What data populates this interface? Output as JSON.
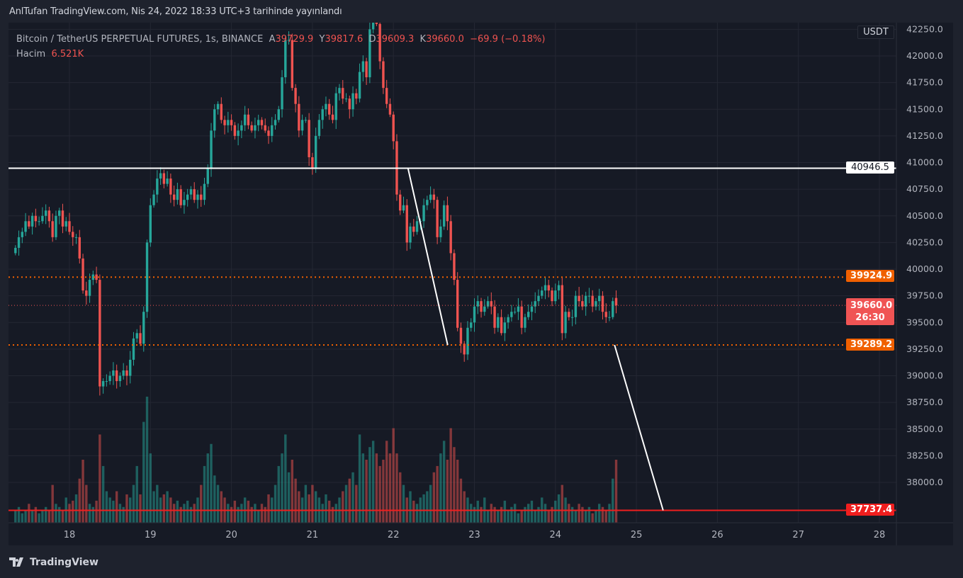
{
  "header": {
    "published": "AnlTufan TradingView.com, Nis 24, 2022 18:33 UTC+3 tarihinde yayınlandı"
  },
  "legend": {
    "symbol": "Bitcoin / TetherUS PERPETUAL FUTURES, 1s, BINANCE",
    "open_label": "A",
    "open": "39729.9",
    "high_label": "Y",
    "high": "39817.6",
    "low_label": "D",
    "low": "39609.3",
    "close_label": "K",
    "close": "39660.0",
    "change": "−69.9 (−0.18%)",
    "volume_label": "Hacim",
    "volume": "6.521K"
  },
  "price_axis": {
    "currency": "USDT"
  },
  "labels": {
    "resistance": "40946.5",
    "upper_band": "39924.9",
    "last_price": "39660.0",
    "countdown": "26:30",
    "lower_band": "39289.2",
    "target": "37737.4"
  },
  "brand": {
    "name": "TradingView"
  },
  "colors": {
    "up": "#26a69a",
    "down": "#ef5350",
    "orange": "#f06000",
    "red_line": "#f01e1e",
    "last": "#f05454",
    "bg": "#161a25",
    "grid": "#242733"
  },
  "chart_data": {
    "type": "candlestick",
    "interval": "1h",
    "last_candle_day": 24.75,
    "ylim": [
      37600,
      42312
    ],
    "yticks": [
      38000,
      38250,
      38500,
      38750,
      39000,
      39250,
      39500,
      39750,
      40000,
      40250,
      40500,
      40750,
      41000,
      41250,
      41500,
      41750,
      42000,
      42250
    ],
    "xticks": [
      "18",
      "19",
      "20",
      "21",
      "22",
      "23",
      "24",
      "25",
      "26",
      "27",
      "28"
    ],
    "xtick_days": [
      18,
      19,
      20,
      21,
      22,
      23,
      24,
      25,
      26,
      27,
      28
    ],
    "closes": [
      40200,
      40300,
      40350,
      40450,
      40400,
      40500,
      40450,
      40450,
      40500,
      40550,
      40450,
      40300,
      40500,
      40550,
      40400,
      40450,
      40350,
      40300,
      40300,
      40100,
      39800,
      39750,
      39900,
      39950,
      39900,
      38900,
      38950,
      38950,
      39000,
      39050,
      38950,
      39000,
      39050,
      39000,
      39150,
      39350,
      39400,
      39300,
      39600,
      40250,
      40600,
      40700,
      40850,
      40900,
      40800,
      40850,
      40700,
      40650,
      40750,
      40600,
      40650,
      40700,
      40750,
      40650,
      40700,
      40650,
      40800,
      40950,
      41300,
      41500,
      41550,
      41400,
      41350,
      41400,
      41350,
      41250,
      41300,
      41350,
      41450,
      41350,
      41300,
      41350,
      41400,
      41350,
      41300,
      41250,
      41350,
      41400,
      41500,
      41800,
      42150,
      42150,
      41700,
      41550,
      41300,
      41400,
      41400,
      41050,
      40950,
      41250,
      41400,
      41500,
      41550,
      41450,
      41400,
      41650,
      41700,
      41600,
      41600,
      41500,
      41650,
      41600,
      41850,
      41950,
      41800,
      42250,
      42400,
      42300,
      41950,
      41700,
      41550,
      41450,
      41200,
      40700,
      40550,
      40600,
      40250,
      40400,
      40350,
      40450,
      40450,
      40600,
      40650,
      40700,
      40650,
      40300,
      40400,
      40600,
      40450,
      40150,
      39900,
      39450,
      39300,
      39200,
      39450,
      39500,
      39650,
      39700,
      39600,
      39650,
      39700,
      39650,
      39450,
      39550,
      39400,
      39500,
      39550,
      39600,
      39600,
      39650,
      39450,
      39550,
      39600,
      39650,
      39700,
      39750,
      39800,
      39850,
      39800,
      39700,
      39800,
      39850,
      39400,
      39600,
      39550,
      39550,
      39750,
      39700,
      39650,
      39750,
      39750,
      39650,
      39700,
      39750,
      39600,
      39550,
      39550,
      39700,
      39660
    ],
    "last_open": 39729.9,
    "volumes": [
      4,
      5,
      3,
      4,
      6,
      4,
      5,
      3,
      4,
      5,
      4,
      12,
      6,
      5,
      4,
      8,
      6,
      7,
      9,
      14,
      20,
      12,
      6,
      5,
      7,
      28,
      18,
      10,
      8,
      7,
      10,
      6,
      5,
      9,
      8,
      12,
      18,
      9,
      32,
      40,
      22,
      10,
      12,
      8,
      9,
      10,
      8,
      6,
      7,
      5,
      6,
      7,
      5,
      6,
      8,
      12,
      18,
      22,
      25,
      15,
      12,
      10,
      8,
      6,
      5,
      7,
      5,
      6,
      8,
      7,
      5,
      6,
      4,
      6,
      5,
      9,
      8,
      12,
      18,
      22,
      28,
      16,
      20,
      14,
      10,
      8,
      12,
      9,
      12,
      10,
      8,
      6,
      9,
      7,
      5,
      6,
      8,
      10,
      12,
      14,
      16,
      12,
      28,
      22,
      20,
      24,
      26,
      22,
      18,
      20,
      26,
      22,
      30,
      22,
      16,
      12,
      8,
      10,
      7,
      6,
      8,
      9,
      10,
      12,
      16,
      18,
      22,
      26,
      20,
      30,
      24,
      20,
      14,
      10,
      8,
      6,
      5,
      7,
      5,
      8,
      4,
      6,
      5,
      4,
      5,
      7,
      4,
      5,
      6,
      3,
      4,
      5,
      6,
      7,
      4,
      5,
      8,
      6,
      4,
      5,
      7,
      9,
      12,
      8,
      6,
      5,
      4,
      6,
      5,
      4,
      5,
      3,
      4,
      6,
      5,
      4,
      6,
      14,
      20
    ]
  },
  "levels": [
    {
      "price": 40946.5,
      "style": "solid-white"
    },
    {
      "price": 39924.9,
      "style": "dotted-orange"
    },
    {
      "price": 39660.0,
      "style": "dotted-last"
    },
    {
      "price": 39289.2,
      "style": "dotted-orange"
    },
    {
      "price": 37737.4,
      "style": "solid-red"
    }
  ],
  "trendlines": [
    {
      "from": [
        22.18,
        40946.5
      ],
      "to": [
        22.67,
        39289.2
      ]
    },
    {
      "from": [
        24.73,
        39289.2
      ],
      "to": [
        25.33,
        37737.4
      ]
    }
  ]
}
